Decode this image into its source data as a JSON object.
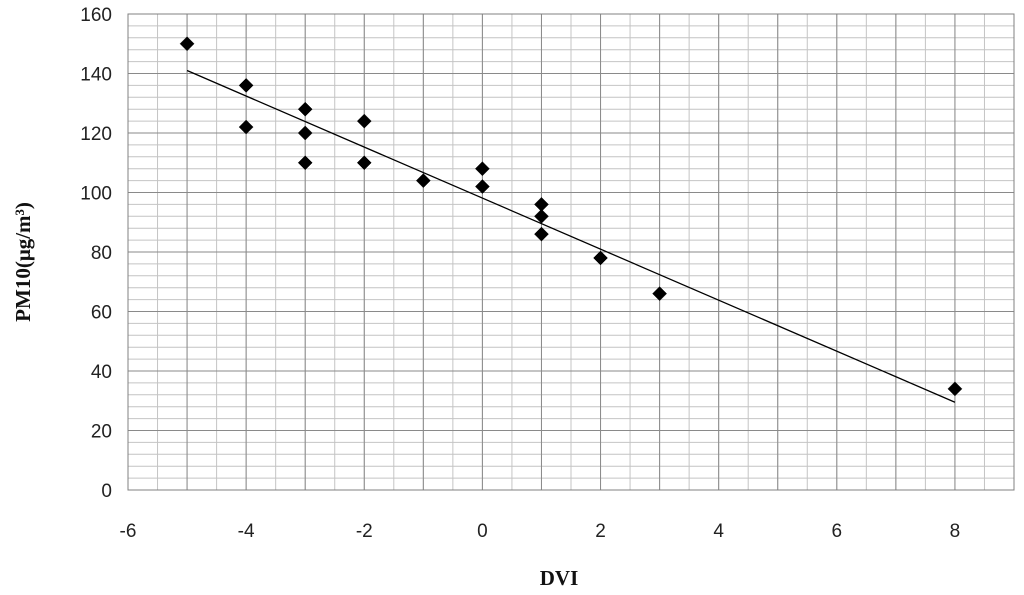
{
  "chart_data": {
    "type": "scatter",
    "title": "",
    "xlabel": "DVI",
    "ylabel": "PM10(μg/m³)",
    "xlim": [
      -6,
      9
    ],
    "ylim": [
      0,
      160
    ],
    "x_ticks": [
      -6,
      -4,
      -2,
      0,
      2,
      4,
      6,
      8
    ],
    "y_ticks": [
      0,
      20,
      40,
      60,
      80,
      100,
      120,
      140,
      160
    ],
    "grid": true,
    "legend": "none",
    "marker": "diamond",
    "marker_color": "#000000",
    "series": [
      {
        "points": [
          {
            "x": -5,
            "y": 150
          },
          {
            "x": -4,
            "y": 136
          },
          {
            "x": -4,
            "y": 122
          },
          {
            "x": -3,
            "y": 128
          },
          {
            "x": -3,
            "y": 120
          },
          {
            "x": -3,
            "y": 110
          },
          {
            "x": -2,
            "y": 124
          },
          {
            "x": -2,
            "y": 110
          },
          {
            "x": -1,
            "y": 104
          },
          {
            "x": 0,
            "y": 108
          },
          {
            "x": 0,
            "y": 102
          },
          {
            "x": 1,
            "y": 96
          },
          {
            "x": 1,
            "y": 92
          },
          {
            "x": 1,
            "y": 86
          },
          {
            "x": 2,
            "y": 78
          },
          {
            "x": 3,
            "y": 66
          },
          {
            "x": 8,
            "y": 34
          }
        ]
      }
    ],
    "trendline": {
      "type": "linear",
      "x_start": -5,
      "y_start": 141,
      "x_end": 8,
      "y_end": 29.5
    }
  }
}
